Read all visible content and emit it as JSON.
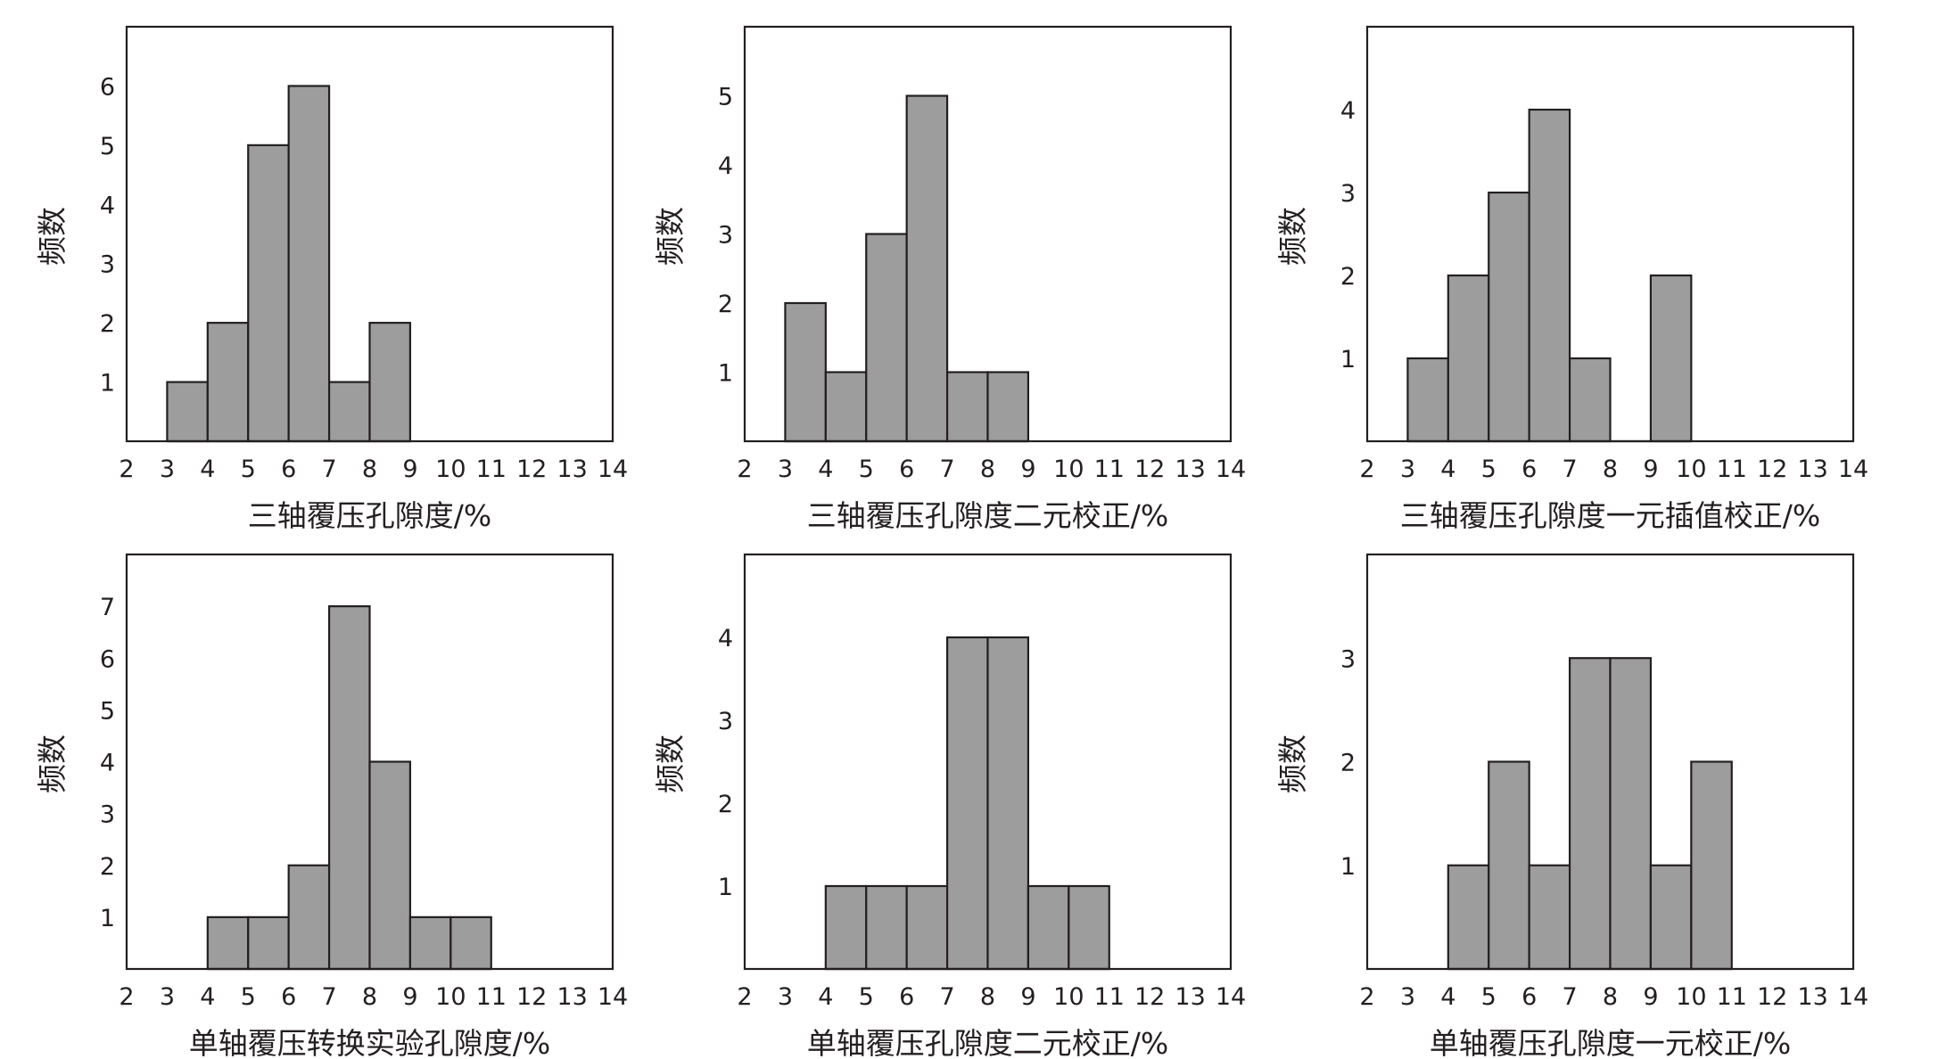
{
  "chart_data": [
    {
      "type": "bar",
      "title": "",
      "xlabel": "三轴覆压孔隙度/%",
      "ylabel": "频数",
      "xlim": [
        2,
        14
      ],
      "ylim": [
        0,
        7
      ],
      "x_ticks": [
        "2",
        "3",
        "4",
        "5",
        "6",
        "7",
        "8",
        "9",
        "10",
        "11",
        "12",
        "13",
        "14"
      ],
      "y_ticks": [
        "1",
        "2",
        "3",
        "4",
        "5",
        "6"
      ],
      "bins": [
        [
          3,
          4
        ],
        [
          4,
          5
        ],
        [
          5,
          6
        ],
        [
          6,
          7
        ],
        [
          7,
          8
        ],
        [
          8,
          9
        ]
      ],
      "values": [
        1,
        2,
        5,
        6,
        1,
        2
      ],
      "grid": false
    },
    {
      "type": "bar",
      "title": "",
      "xlabel": "三轴覆压孔隙度二元校正/%",
      "ylabel": "频数",
      "xlim": [
        2,
        14
      ],
      "ylim": [
        0,
        6
      ],
      "x_ticks": [
        "2",
        "3",
        "4",
        "5",
        "6",
        "7",
        "8",
        "9",
        "10",
        "11",
        "12",
        "13",
        "14"
      ],
      "y_ticks": [
        "1",
        "2",
        "3",
        "4",
        "5"
      ],
      "bins": [
        [
          3,
          4
        ],
        [
          4,
          5
        ],
        [
          5,
          6
        ],
        [
          6,
          7
        ],
        [
          7,
          8
        ],
        [
          8,
          9
        ]
      ],
      "values": [
        2,
        1,
        3,
        5,
        1,
        1
      ],
      "grid": false
    },
    {
      "type": "bar",
      "title": "",
      "xlabel": "三轴覆压孔隙度一元插值校正/%",
      "ylabel": "频数",
      "xlim": [
        2,
        14
      ],
      "ylim": [
        0,
        5
      ],
      "x_ticks": [
        "2",
        "3",
        "4",
        "5",
        "6",
        "7",
        "8",
        "9",
        "10",
        "11",
        "12",
        "13",
        "14"
      ],
      "y_ticks": [
        "1",
        "2",
        "3",
        "4"
      ],
      "bins": [
        [
          3,
          4
        ],
        [
          4,
          5
        ],
        [
          5,
          6
        ],
        [
          6,
          7
        ],
        [
          7,
          8
        ],
        [
          9,
          10
        ]
      ],
      "values": [
        1,
        2,
        3,
        4,
        1,
        2
      ],
      "grid": false
    },
    {
      "type": "bar",
      "title": "",
      "xlabel": "单轴覆压转换实验孔隙度/%",
      "ylabel": "频数",
      "xlim": [
        2,
        14
      ],
      "ylim": [
        0,
        8
      ],
      "x_ticks": [
        "2",
        "3",
        "4",
        "5",
        "6",
        "7",
        "8",
        "9",
        "10",
        "11",
        "12",
        "13",
        "14"
      ],
      "y_ticks": [
        "1",
        "2",
        "3",
        "4",
        "5",
        "6",
        "7"
      ],
      "bins": [
        [
          4,
          5
        ],
        [
          5,
          6
        ],
        [
          6,
          7
        ],
        [
          7,
          8
        ],
        [
          8,
          9
        ],
        [
          9,
          10
        ],
        [
          10,
          11
        ]
      ],
      "values": [
        1,
        1,
        2,
        7,
        4,
        1,
        1
      ],
      "grid": false
    },
    {
      "type": "bar",
      "title": "",
      "xlabel": "单轴覆压孔隙度二元校正/%",
      "ylabel": "频数",
      "xlim": [
        2,
        14
      ],
      "ylim": [
        0,
        5
      ],
      "x_ticks": [
        "2",
        "3",
        "4",
        "5",
        "6",
        "7",
        "8",
        "9",
        "10",
        "11",
        "12",
        "13",
        "14"
      ],
      "y_ticks": [
        "1",
        "2",
        "3",
        "4"
      ],
      "bins": [
        [
          4,
          5
        ],
        [
          5,
          6
        ],
        [
          6,
          7
        ],
        [
          7,
          8
        ],
        [
          8,
          9
        ],
        [
          9,
          10
        ],
        [
          10,
          11
        ]
      ],
      "values": [
        1,
        1,
        1,
        4,
        4,
        1,
        1
      ],
      "grid": false
    },
    {
      "type": "bar",
      "title": "",
      "xlabel": "单轴覆压孔隙度一元校正/%",
      "ylabel": "频数",
      "xlim": [
        2,
        14
      ],
      "ylim": [
        0,
        4
      ],
      "x_ticks": [
        "2",
        "3",
        "4",
        "5",
        "6",
        "7",
        "8",
        "9",
        "10",
        "11",
        "12",
        "13",
        "14"
      ],
      "y_ticks": [
        "1",
        "2",
        "3"
      ],
      "bins": [
        [
          4,
          5
        ],
        [
          5,
          6
        ],
        [
          6,
          7
        ],
        [
          7,
          8
        ],
        [
          8,
          9
        ],
        [
          9,
          10
        ],
        [
          10,
          11
        ]
      ],
      "values": [
        1,
        2,
        1,
        3,
        3,
        1,
        2
      ],
      "grid": false
    }
  ]
}
